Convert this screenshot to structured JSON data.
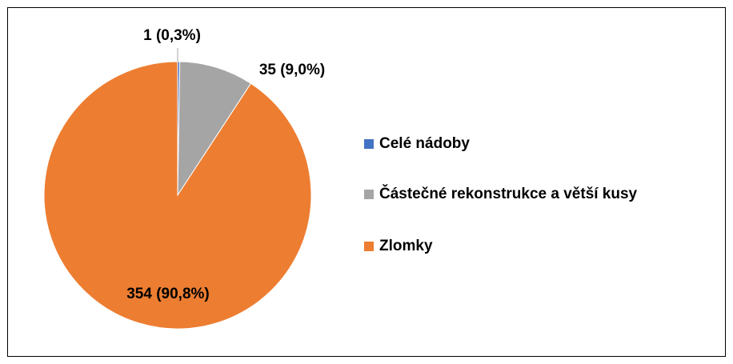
{
  "chart_data": {
    "type": "pie",
    "categories": [
      "Celé nádoby",
      "Částečné rekonstrukce a větší kusy",
      "Zlomky"
    ],
    "values": [
      1,
      35,
      354
    ],
    "value_labels": [
      "1 (0,3%)",
      "35 (9,0%)",
      "354 (90,8%)"
    ],
    "colors": [
      "#4472c4",
      "#a5a5a5",
      "#ed7d31"
    ],
    "legend": "right"
  }
}
